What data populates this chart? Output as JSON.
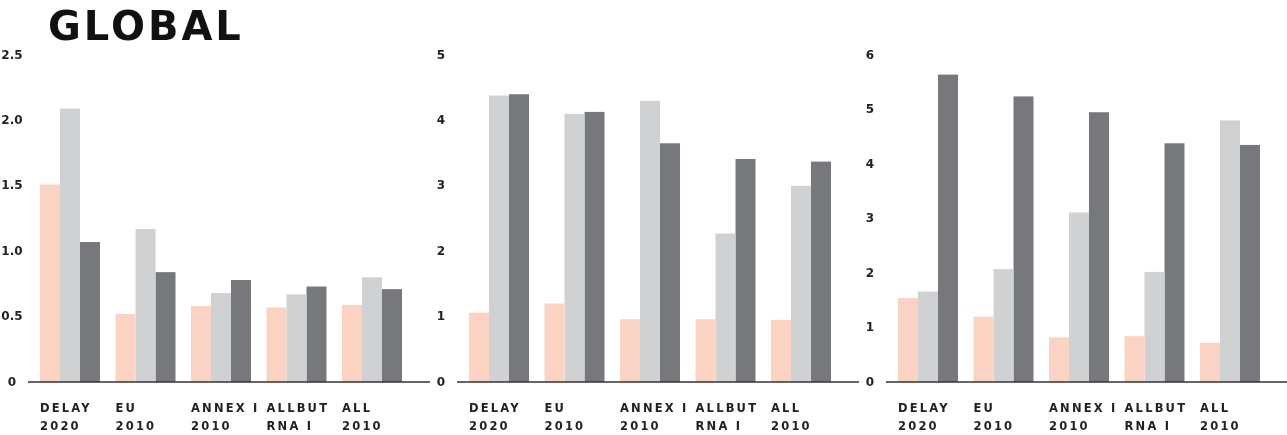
{
  "chart_data": [
    {
      "type": "bar",
      "title": "GLOBAL",
      "categories": [
        "DELAY\n2020",
        "EU\n2010",
        "ANNEX I\n2010",
        "ALLBUT\nRNA I",
        "ALL\n2010"
      ],
      "series": [
        {
          "color": "#77787c",
          "values": [
            1.07,
            0.84,
            0.78,
            0.73,
            0.71
          ]
        },
        {
          "color": "#d0d1d3",
          "values": [
            2.09,
            1.17,
            0.68,
            0.67,
            0.8
          ]
        },
        {
          "color": "#fbd3c2",
          "values": [
            1.51,
            0.52,
            0.58,
            0.57,
            0.59
          ]
        }
      ],
      "ylim": [
        0,
        2.5
      ],
      "yticks": [
        0,
        0.5,
        {
          "value": 1,
          "label": "1.0"
        },
        1.5,
        {
          "value": 2,
          "label": "2.0"
        },
        2.5
      ],
      "grid": false
    },
    {
      "type": "bar",
      "categories": [
        "DELAY\n2020",
        "EU\n2010",
        "ANNEX I\n2010",
        "ALLBUT\nRNA I",
        "ALL\n2010"
      ],
      "series": [
        {
          "color": "#77787c",
          "values": [
            4.4,
            4.13,
            3.65,
            3.41,
            3.37
          ]
        },
        {
          "color": "#d0d1d3",
          "values": [
            4.38,
            4.1,
            4.3,
            2.27,
            3.0
          ]
        },
        {
          "color": "#fbd3c2",
          "values": [
            1.06,
            1.2,
            0.96,
            0.96,
            0.95
          ]
        }
      ],
      "ylim": [
        0,
        5
      ],
      "yticks": [
        0,
        1,
        2,
        3,
        4,
        5
      ],
      "grid": false
    },
    {
      "type": "bar",
      "categories": [
        "DELAY\n2020",
        "EU\n2010",
        "ANNEX I\n2010",
        "ALLBUT\nRNA I",
        "ALL\n2010"
      ],
      "series": [
        {
          "color": "#77787c",
          "values": [
            5.64,
            5.24,
            4.95,
            4.38,
            4.35
          ]
        },
        {
          "color": "#d0d1d3",
          "values": [
            1.66,
            2.07,
            3.11,
            2.02,
            4.8
          ]
        },
        {
          "color": "#fbd3c2",
          "values": [
            1.54,
            1.2,
            0.82,
            0.84,
            0.72
          ]
        }
      ],
      "ylim": [
        0,
        6
      ],
      "yticks": [
        0,
        1,
        2,
        3,
        4,
        5,
        6
      ],
      "grid": false
    }
  ]
}
